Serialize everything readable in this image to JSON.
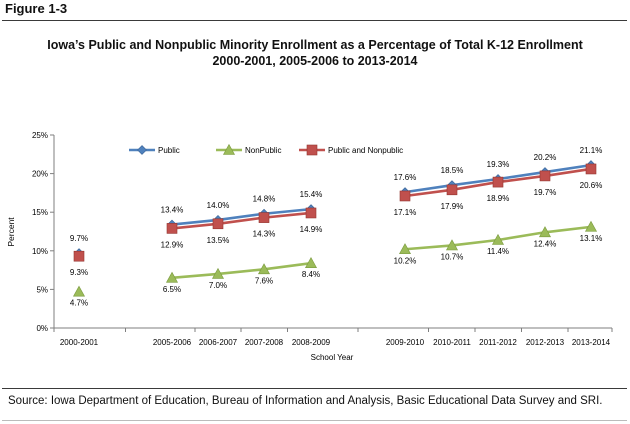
{
  "figure_label": "Figure 1-3",
  "source": "Source:  Iowa Department of Education, Bureau of Information and Analysis, Basic Educational Data Survey and SRI.",
  "chart_data": {
    "type": "line",
    "title": "Iowa’s Public and Nonpublic Minority Enrollment as a Percentage of Total K-12 Enrollment",
    "subtitle": "2000-2001, 2005-2006 to 2013-2014",
    "xlabel": "School Year",
    "ylabel": "Percent",
    "ylim": [
      0,
      25
    ],
    "yticks": [
      "0%",
      "5%",
      "10%",
      "15%",
      "20%",
      "25%"
    ],
    "categories": [
      "2000-2001",
      "2005-2006",
      "2006-2007",
      "2007-2008",
      "2008-2009",
      "2009-2010",
      "2010-2011",
      "2011-2012",
      "2012-2013",
      "2013-2014"
    ],
    "legend_position": "top",
    "series": [
      {
        "name": "Public",
        "color": "#4f81bd",
        "marker": "diamond",
        "values": [
          9.7,
          13.4,
          14.0,
          14.8,
          15.4,
          17.6,
          18.5,
          19.3,
          20.2,
          21.1
        ],
        "labels": [
          "9.7%",
          "13.4%",
          "14.0%",
          "14.8%",
          "15.4%",
          "17.6%",
          "18.5%",
          "19.3%",
          "20.2%",
          "21.1%"
        ]
      },
      {
        "name": "NonPublic",
        "color": "#9bbb59",
        "marker": "triangle",
        "values": [
          4.7,
          6.5,
          7.0,
          7.6,
          8.4,
          10.2,
          10.7,
          11.4,
          12.4,
          13.1
        ],
        "labels": [
          "4.7%",
          "6.5%",
          "7.0%",
          "7.6%",
          "8.4%",
          "10.2%",
          "10.7%",
          "11.4%",
          "12.4%",
          "13.1%"
        ]
      },
      {
        "name": "Public and Nonpublic",
        "color": "#c0504d",
        "marker": "square",
        "values": [
          9.3,
          12.9,
          13.5,
          14.3,
          14.9,
          17.1,
          17.9,
          18.9,
          19.7,
          20.6
        ],
        "labels": [
          "9.3%",
          "12.9%",
          "13.5%",
          "14.3%",
          "14.9%",
          "17.1%",
          "17.9%",
          "18.9%",
          "19.7%",
          "20.6%"
        ]
      }
    ]
  }
}
